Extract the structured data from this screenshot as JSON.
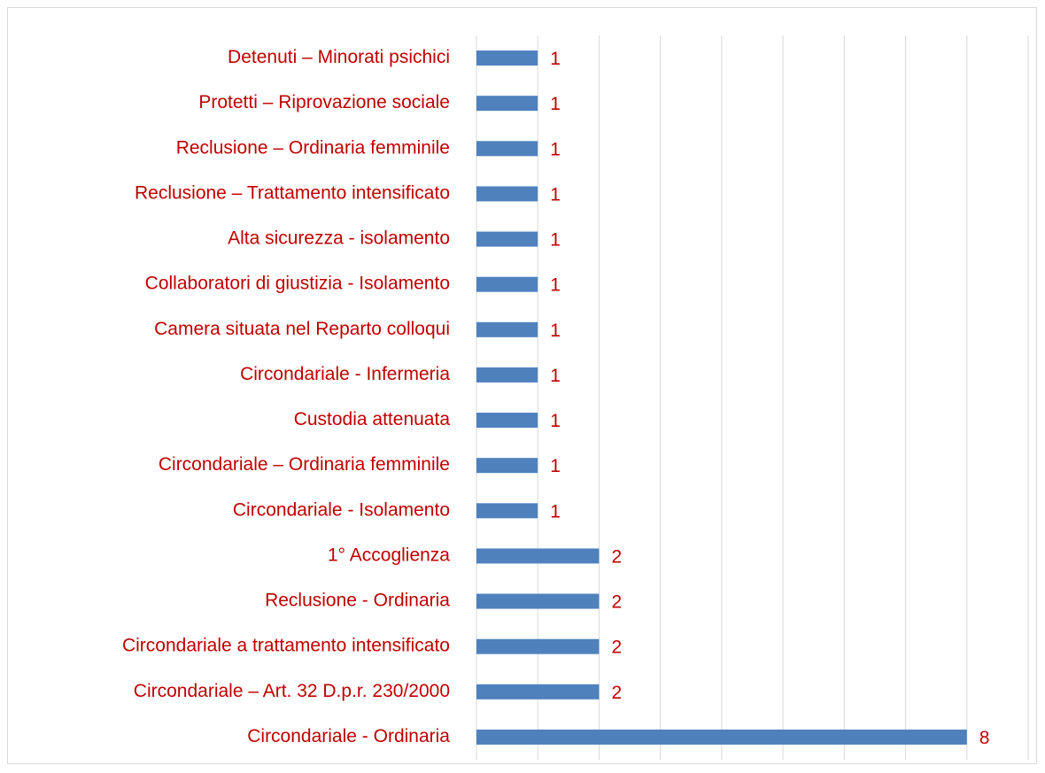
{
  "chart_data": {
    "type": "bar",
    "orientation": "horizontal",
    "categories": [
      "Detenuti – Minorati psichici",
      "Protetti – Riprovazione sociale",
      "Reclusione – Ordinaria femminile",
      "Reclusione – Trattamento intensificato",
      "Alta sicurezza - isolamento",
      "Collaboratori di giustizia - Isolamento",
      "Camera situata nel Reparto colloqui",
      "Circondariale - Infermeria",
      "Custodia attenuata",
      "Circondariale – Ordinaria femminile",
      "Circondariale - Isolamento",
      "1° Accoglienza",
      "Reclusione - Ordinaria",
      "Circondariale a trattamento intensificato",
      "Circondariale – Art. 32 D.p.r. 230/2000",
      "Circondariale - Ordinaria"
    ],
    "values": [
      1,
      1,
      1,
      1,
      1,
      1,
      1,
      1,
      1,
      1,
      1,
      2,
      2,
      2,
      2,
      8
    ],
    "color": "#4f81bd",
    "xlim": [
      0,
      9
    ],
    "xticks": [
      0,
      1,
      2,
      3,
      4,
      5,
      6,
      7,
      8,
      9
    ],
    "grid": true
  }
}
